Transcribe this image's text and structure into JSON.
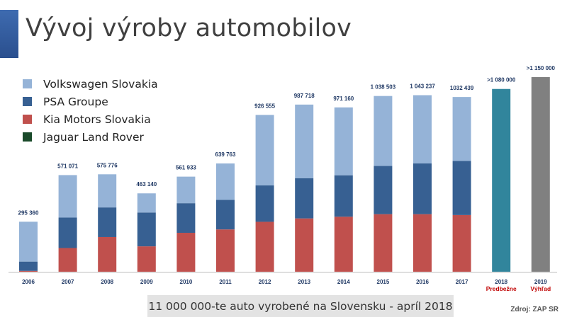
{
  "title": "Vývoj výroby automobilov",
  "caption": "11 000 000-te auto vyrobené na Slovensku - apríl 2018",
  "source": "Zdroj: ZAP SR",
  "colors": {
    "vw": "#95b3d7",
    "psa": "#376092",
    "kia": "#c0504d",
    "jlr": "#1a4a2a",
    "predbezne": "#31859c",
    "vyhlad": "#808080",
    "accent": "#c00000"
  },
  "chart_data": {
    "type": "bar",
    "stacked": true,
    "categories": [
      "2006",
      "2007",
      "2008",
      "2009",
      "2010",
      "2011",
      "2012",
      "2013",
      "2014",
      "2015",
      "2016",
      "2017",
      "2018",
      "2019"
    ],
    "category_notes": [
      "",
      "",
      "",
      "",
      "",
      "",
      "",
      "",
      "",
      "",
      "",
      "",
      "Predbežne",
      "Výhľad"
    ],
    "totals_labels": [
      "295 360",
      "571 071",
      "575 776",
      "463 140",
      "561 933",
      "639 763",
      "926 555",
      "987 718",
      "971 160",
      "1 038 503",
      "1 043 237",
      "1032 439",
      ">1 080 000",
      ">1 150 000"
    ],
    "totals": [
      295360,
      571071,
      575776,
      463140,
      561933,
      639763,
      926555,
      987718,
      971160,
      1038503,
      1043237,
      1032439,
      1080000,
      1150000
    ],
    "series": [
      {
        "name": "Kia Motors Slovakia",
        "color_key": "kia",
        "values": [
          5000,
          140000,
          205000,
          150000,
          230000,
          250000,
          295000,
          315000,
          325000,
          340000,
          340000,
          335000,
          null,
          null
        ]
      },
      {
        "name": "PSA Groupe",
        "color_key": "psa",
        "values": [
          55000,
          180000,
          175000,
          200000,
          175000,
          175000,
          215000,
          238000,
          245000,
          285000,
          300000,
          320000,
          null,
          null
        ]
      },
      {
        "name": "Volkswagen Slovakia",
        "color_key": "vw",
        "values": [
          235360,
          251071,
          195776,
          113140,
          156933,
          214763,
          416555,
          434718,
          401160,
          413503,
          403237,
          377439,
          null,
          null
        ]
      },
      {
        "name": "Jaguar Land Rover",
        "color_key": "jlr",
        "values": [
          null,
          null,
          null,
          null,
          null,
          null,
          null,
          null,
          null,
          null,
          null,
          null,
          null,
          null
        ]
      }
    ],
    "legend_order": [
      "Volkswagen Slovakia",
      "PSA Groupe",
      "Kia Motors Slovakia",
      "Jaguar Land Rover"
    ],
    "ylim": [
      0,
      1200000
    ],
    "grid": false,
    "legend_position": "top-left"
  }
}
